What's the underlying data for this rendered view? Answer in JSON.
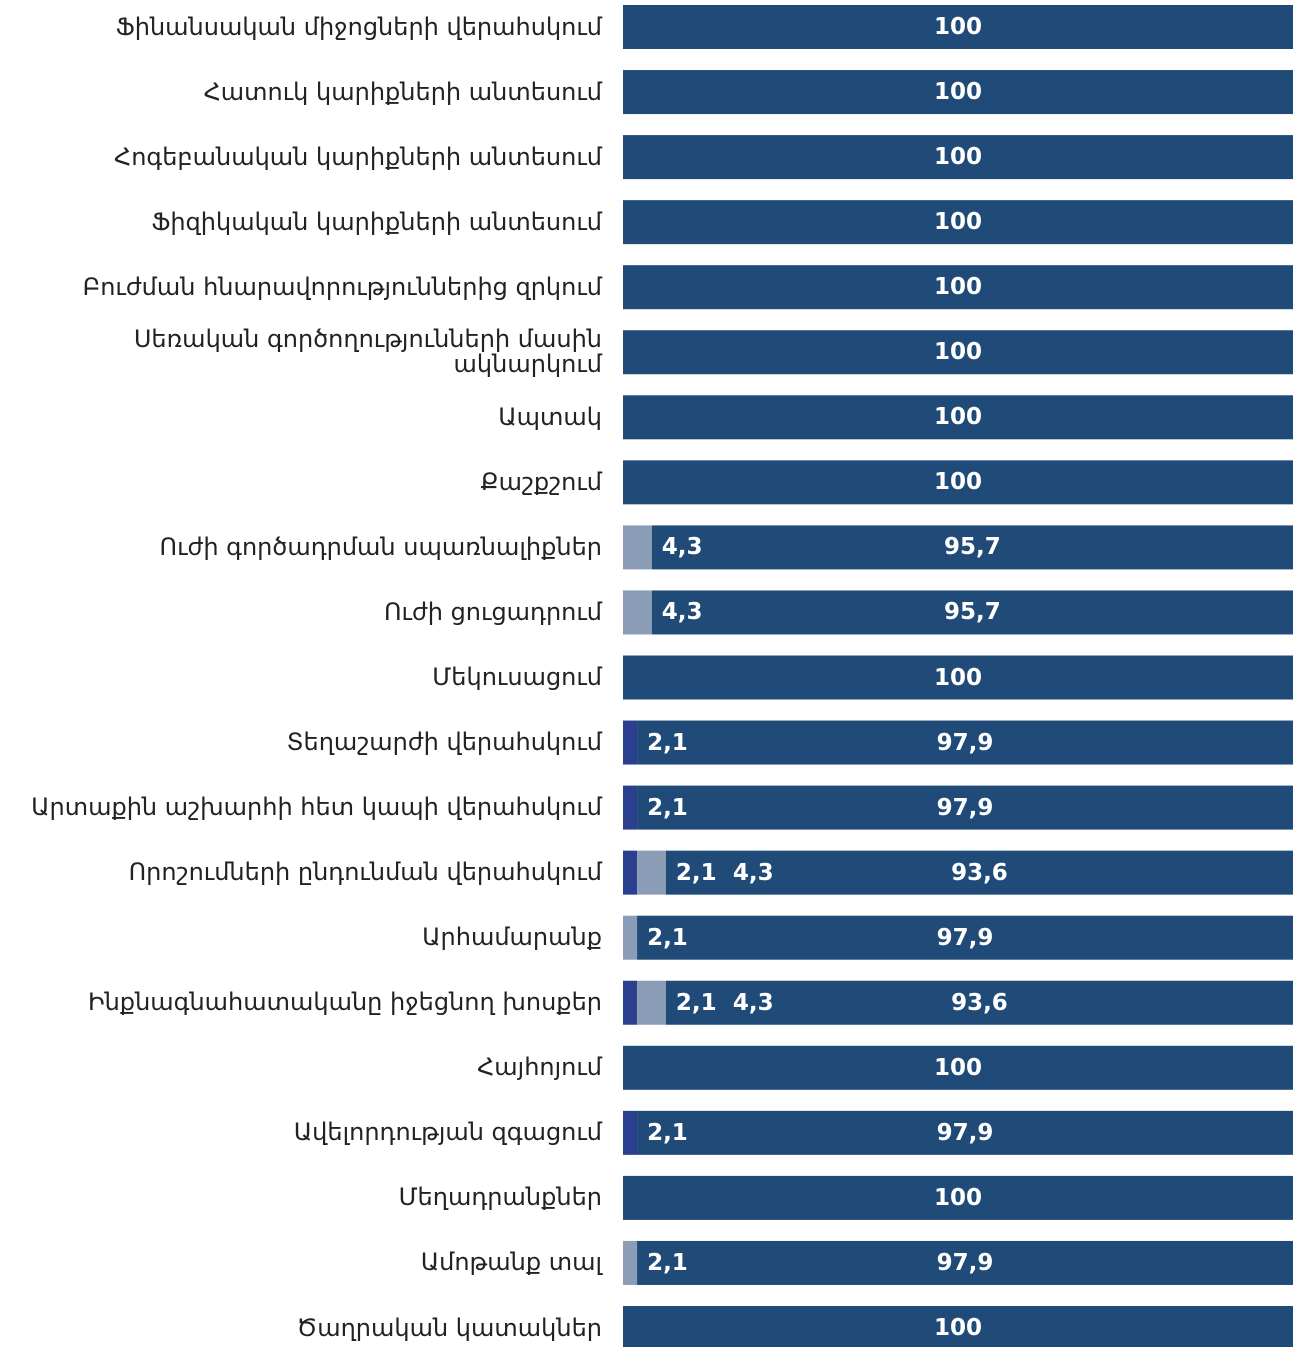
{
  "chart_data": {
    "type": "stacked-bar-horizontal",
    "categories": [
      "Ֆինանսական միջոցների վերահսկում",
      "Հատուկ կարիքների անտեսում",
      "Հոգեբանական կարիքների անտեսում",
      "Ֆիզիկական կարիքների անտեսում",
      "Բուժման հնարավորություններից զրկում",
      "Սեռական գործողությունների մասին ակնարկում",
      "Ապտակ",
      "Քաշքշում",
      "Ուժի գործադրման սպառնալիքներ",
      "Ուժի ցուցադրում",
      "Մեկուսացում",
      "Տեղաշարժի վերահսկում",
      "Արտաքին աշխարհի հետ կապի վերահսկում",
      "Որոշումների ընդունման վերահսկում",
      "Արհամարանք",
      "Ինքնագնահատականը իջեցնող խոսքեր",
      "Հայհոյում",
      "Ավելորդության զգացում",
      "Մեղադրանքներ",
      "Ամոթանք տալ",
      "Ծաղրական կատակներ"
    ],
    "series": [
      {
        "color": "#2b3f8f",
        "values": [
          null,
          null,
          null,
          null,
          null,
          null,
          null,
          null,
          null,
          null,
          null,
          2.1,
          2.1,
          2.1,
          null,
          2.1,
          null,
          2.1,
          null,
          null,
          null
        ],
        "value_labels": [
          null,
          null,
          null,
          null,
          null,
          null,
          null,
          null,
          null,
          null,
          null,
          "2,1",
          "2,1",
          "2,1",
          null,
          "2,1",
          null,
          "2,1",
          null,
          null,
          null
        ]
      },
      {
        "color": "#8b9cb6",
        "values": [
          null,
          null,
          null,
          null,
          null,
          null,
          null,
          null,
          4.3,
          4.3,
          null,
          null,
          null,
          4.3,
          2.1,
          4.3,
          null,
          null,
          null,
          2.1,
          null
        ],
        "value_labels": [
          null,
          null,
          null,
          null,
          null,
          null,
          null,
          null,
          "4,3",
          "4,3",
          null,
          null,
          null,
          "4,3",
          "2,1",
          "4,3",
          null,
          null,
          null,
          "2,1",
          null
        ]
      },
      {
        "color": "#204a78",
        "values": [
          100,
          100,
          100,
          100,
          100,
          100,
          100,
          100,
          95.7,
          95.7,
          100,
          97.9,
          97.9,
          93.6,
          97.9,
          93.6,
          100,
          97.9,
          100,
          97.9,
          100
        ],
        "value_labels": [
          "100",
          "100",
          "100",
          "100",
          "100",
          "100",
          "100",
          "100",
          "95,7",
          "95,7",
          "100",
          "97,9",
          "97,9",
          "93,6",
          "97,9",
          "93,6",
          "100",
          "97,9",
          "100",
          "97,9",
          "100"
        ]
      }
    ],
    "xlim": [
      0,
      100
    ]
  }
}
